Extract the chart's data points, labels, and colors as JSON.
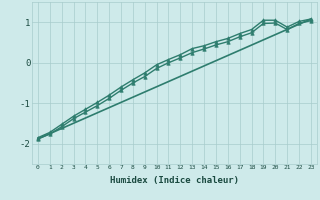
{
  "xlabel": "Humidex (Indice chaleur)",
  "background_color": "#ceeaea",
  "grid_color": "#a8cccc",
  "line_color": "#2e7d6e",
  "text_color": "#1a4a40",
  "xlim": [
    -0.5,
    23.5
  ],
  "ylim": [
    -2.5,
    1.5
  ],
  "yticks": [
    -2,
    -1,
    0,
    1
  ],
  "xticks": [
    0,
    1,
    2,
    3,
    4,
    5,
    6,
    7,
    8,
    9,
    10,
    11,
    12,
    13,
    14,
    15,
    16,
    17,
    18,
    19,
    20,
    21,
    22,
    23
  ],
  "series": [
    {
      "x": [
        0,
        1,
        2,
        3,
        4,
        5,
        6,
        7,
        8,
        9,
        10,
        11,
        12,
        13,
        14,
        15,
        16,
        17,
        18,
        19,
        20,
        21,
        22,
        23
      ],
      "y": [
        -1.85,
        -1.72,
        -1.52,
        -1.32,
        -1.15,
        -0.98,
        -0.8,
        -0.6,
        -0.42,
        -0.25,
        -0.05,
        0.08,
        0.2,
        0.35,
        0.42,
        0.52,
        0.6,
        0.72,
        0.82,
        1.05,
        1.05,
        0.88,
        1.02,
        1.08
      ],
      "marker": "^",
      "linewidth": 1.0,
      "markersize": 2.5
    },
    {
      "x": [
        0,
        1,
        2,
        3,
        4,
        5,
        6,
        7,
        8,
        9,
        10,
        11,
        12,
        13,
        14,
        15,
        16,
        17,
        18,
        19,
        20,
        21,
        22,
        23
      ],
      "y": [
        -1.88,
        -1.76,
        -1.58,
        -1.38,
        -1.22,
        -1.06,
        -0.88,
        -0.68,
        -0.5,
        -0.34,
        -0.14,
        0.0,
        0.12,
        0.25,
        0.34,
        0.44,
        0.52,
        0.64,
        0.74,
        0.97,
        0.98,
        0.82,
        0.97,
        1.04
      ],
      "marker": "^",
      "linewidth": 1.0,
      "markersize": 2.5
    },
    {
      "x": [
        0,
        23
      ],
      "y": [
        -1.88,
        1.08
      ],
      "marker": null,
      "linewidth": 1.2,
      "markersize": 0
    }
  ],
  "figsize": [
    3.2,
    2.0
  ],
  "dpi": 100
}
